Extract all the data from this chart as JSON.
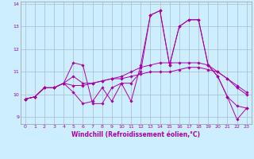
{
  "title": "",
  "xlabel": "Windchill (Refroidissement éolien,°C)",
  "ylabel": "",
  "bg_color": "#cceeff",
  "line_color": "#aa00aa",
  "grid_color": "#aabbcc",
  "ylim": [
    8.7,
    14.1
  ],
  "xlim": [
    -0.5,
    23.5
  ],
  "yticks": [
    9,
    10,
    11,
    12,
    13,
    14
  ],
  "xticks": [
    0,
    1,
    2,
    3,
    4,
    5,
    6,
    7,
    8,
    9,
    10,
    11,
    12,
    13,
    14,
    15,
    16,
    17,
    18,
    19,
    20,
    21,
    22,
    23
  ],
  "series": [
    [
      9.8,
      9.9,
      10.3,
      10.3,
      10.5,
      11.4,
      11.3,
      9.6,
      9.6,
      10.3,
      10.5,
      10.5,
      11.0,
      13.5,
      13.7,
      11.3,
      13.0,
      13.3,
      13.3,
      11.3,
      10.8,
      9.9,
      8.9,
      9.4
    ],
    [
      9.8,
      9.9,
      10.3,
      10.3,
      10.5,
      10.8,
      10.5,
      10.5,
      10.6,
      10.7,
      10.8,
      11.0,
      11.2,
      11.3,
      11.4,
      11.4,
      11.4,
      11.4,
      11.4,
      11.3,
      11.0,
      10.7,
      10.4,
      10.1
    ],
    [
      9.8,
      9.9,
      10.3,
      10.3,
      10.5,
      10.4,
      10.4,
      10.5,
      10.6,
      10.7,
      10.7,
      10.8,
      10.9,
      11.0,
      11.0,
      11.0,
      11.1,
      11.2,
      11.2,
      11.1,
      11.0,
      10.7,
      10.3,
      10.0
    ],
    [
      9.8,
      9.9,
      10.3,
      10.3,
      10.5,
      10.1,
      9.6,
      9.7,
      10.3,
      9.7,
      10.5,
      9.7,
      11.3,
      13.5,
      13.7,
      11.3,
      13.0,
      13.3,
      13.3,
      11.3,
      10.8,
      9.9,
      9.5,
      9.4
    ]
  ],
  "label_fontsize": 4.5,
  "xlabel_fontsize": 5.5,
  "tick_fontsize": 4.5
}
